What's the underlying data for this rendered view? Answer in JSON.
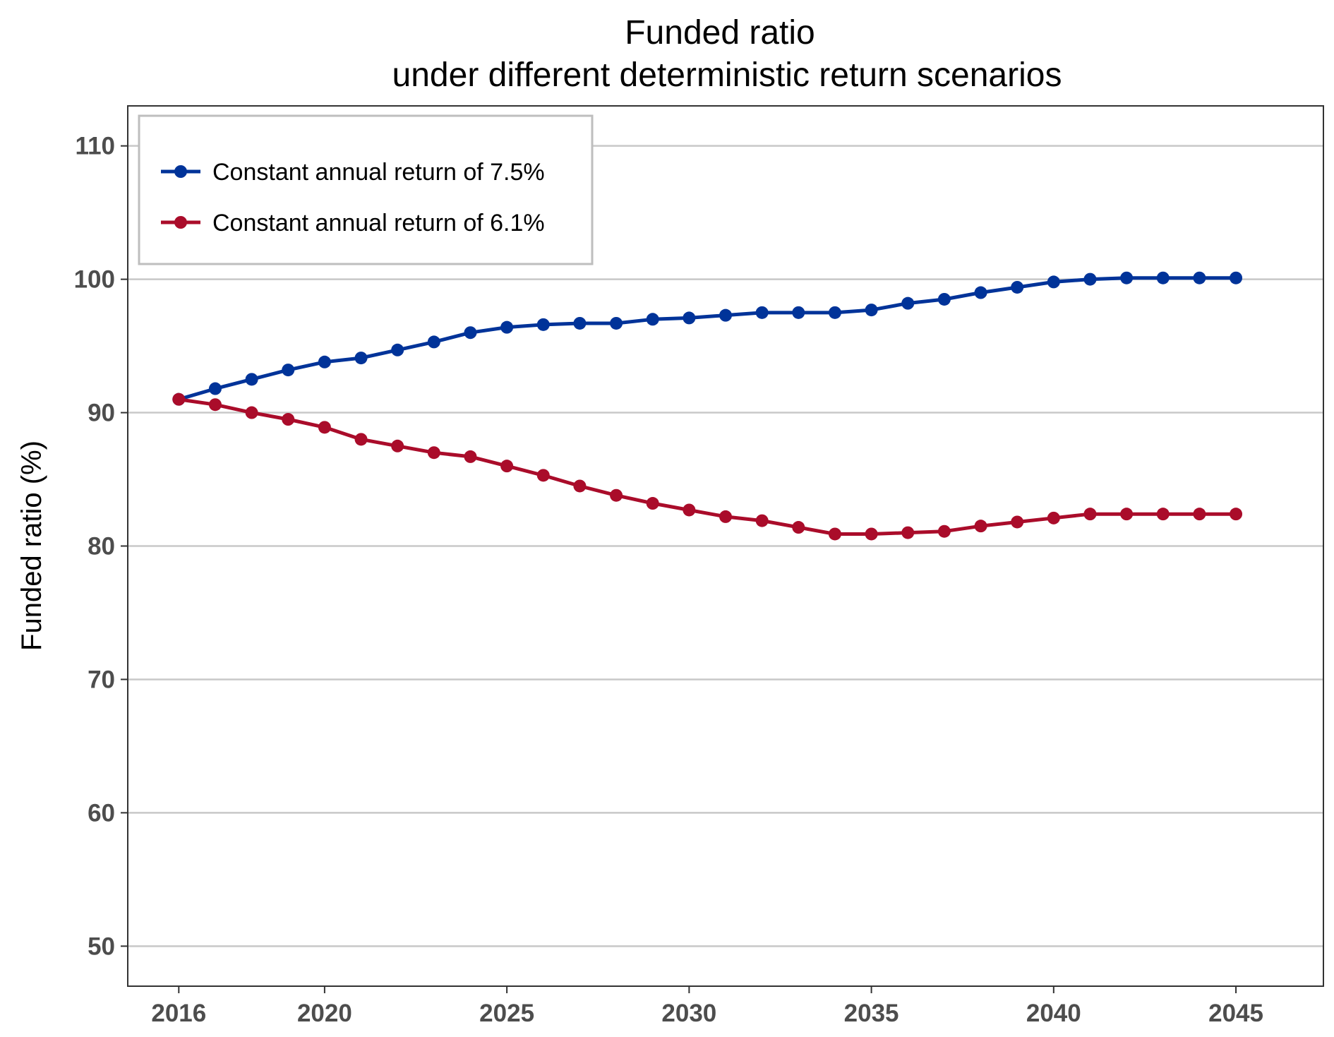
{
  "chart_data": {
    "type": "line",
    "title": "Funded ratio",
    "subtitle": "under different deterministic return scenarios",
    "xlabel": "",
    "ylabel": "Funded ratio (%)",
    "x": [
      2016,
      2017,
      2018,
      2019,
      2020,
      2021,
      2022,
      2023,
      2024,
      2025,
      2026,
      2027,
      2028,
      2029,
      2030,
      2031,
      2032,
      2033,
      2034,
      2035,
      2036,
      2037,
      2038,
      2039,
      2040,
      2041,
      2042,
      2043,
      2044,
      2045
    ],
    "xlim": [
      2014.6,
      2047.4
    ],
    "ylim": [
      47,
      113
    ],
    "x_ticks": [
      2016,
      2020,
      2025,
      2030,
      2035,
      2040,
      2045
    ],
    "y_ticks": [
      50,
      60,
      70,
      80,
      90,
      100,
      110
    ],
    "grid": "horizontal major",
    "legend_position": "top-left",
    "series": [
      {
        "name": "Constant annual return of 7.5%",
        "color": "#003399",
        "values": [
          91.0,
          91.8,
          92.5,
          93.2,
          93.8,
          94.1,
          94.7,
          95.3,
          96.0,
          96.4,
          96.6,
          96.7,
          96.7,
          97.0,
          97.1,
          97.3,
          97.5,
          97.5,
          97.5,
          97.7,
          98.2,
          98.5,
          99.0,
          99.4,
          99.8,
          100.0,
          100.1,
          100.1,
          100.1,
          100.1
        ]
      },
      {
        "name": "Constant annual return of 6.1%",
        "color": "#aa0c2a",
        "values": [
          91.0,
          90.6,
          90.0,
          89.5,
          88.9,
          88.0,
          87.5,
          87.0,
          86.7,
          86.0,
          85.3,
          84.5,
          83.8,
          83.2,
          82.7,
          82.2,
          81.9,
          81.4,
          80.9,
          80.9,
          81.0,
          81.1,
          81.5,
          81.8,
          82.1,
          82.4,
          82.4,
          82.4,
          82.4,
          82.4
        ]
      }
    ]
  },
  "colors": {
    "grid": "#c8c8c8",
    "axis": "#333333",
    "tick_text": "#4d4d4d",
    "legend_border": "#bebebe"
  }
}
